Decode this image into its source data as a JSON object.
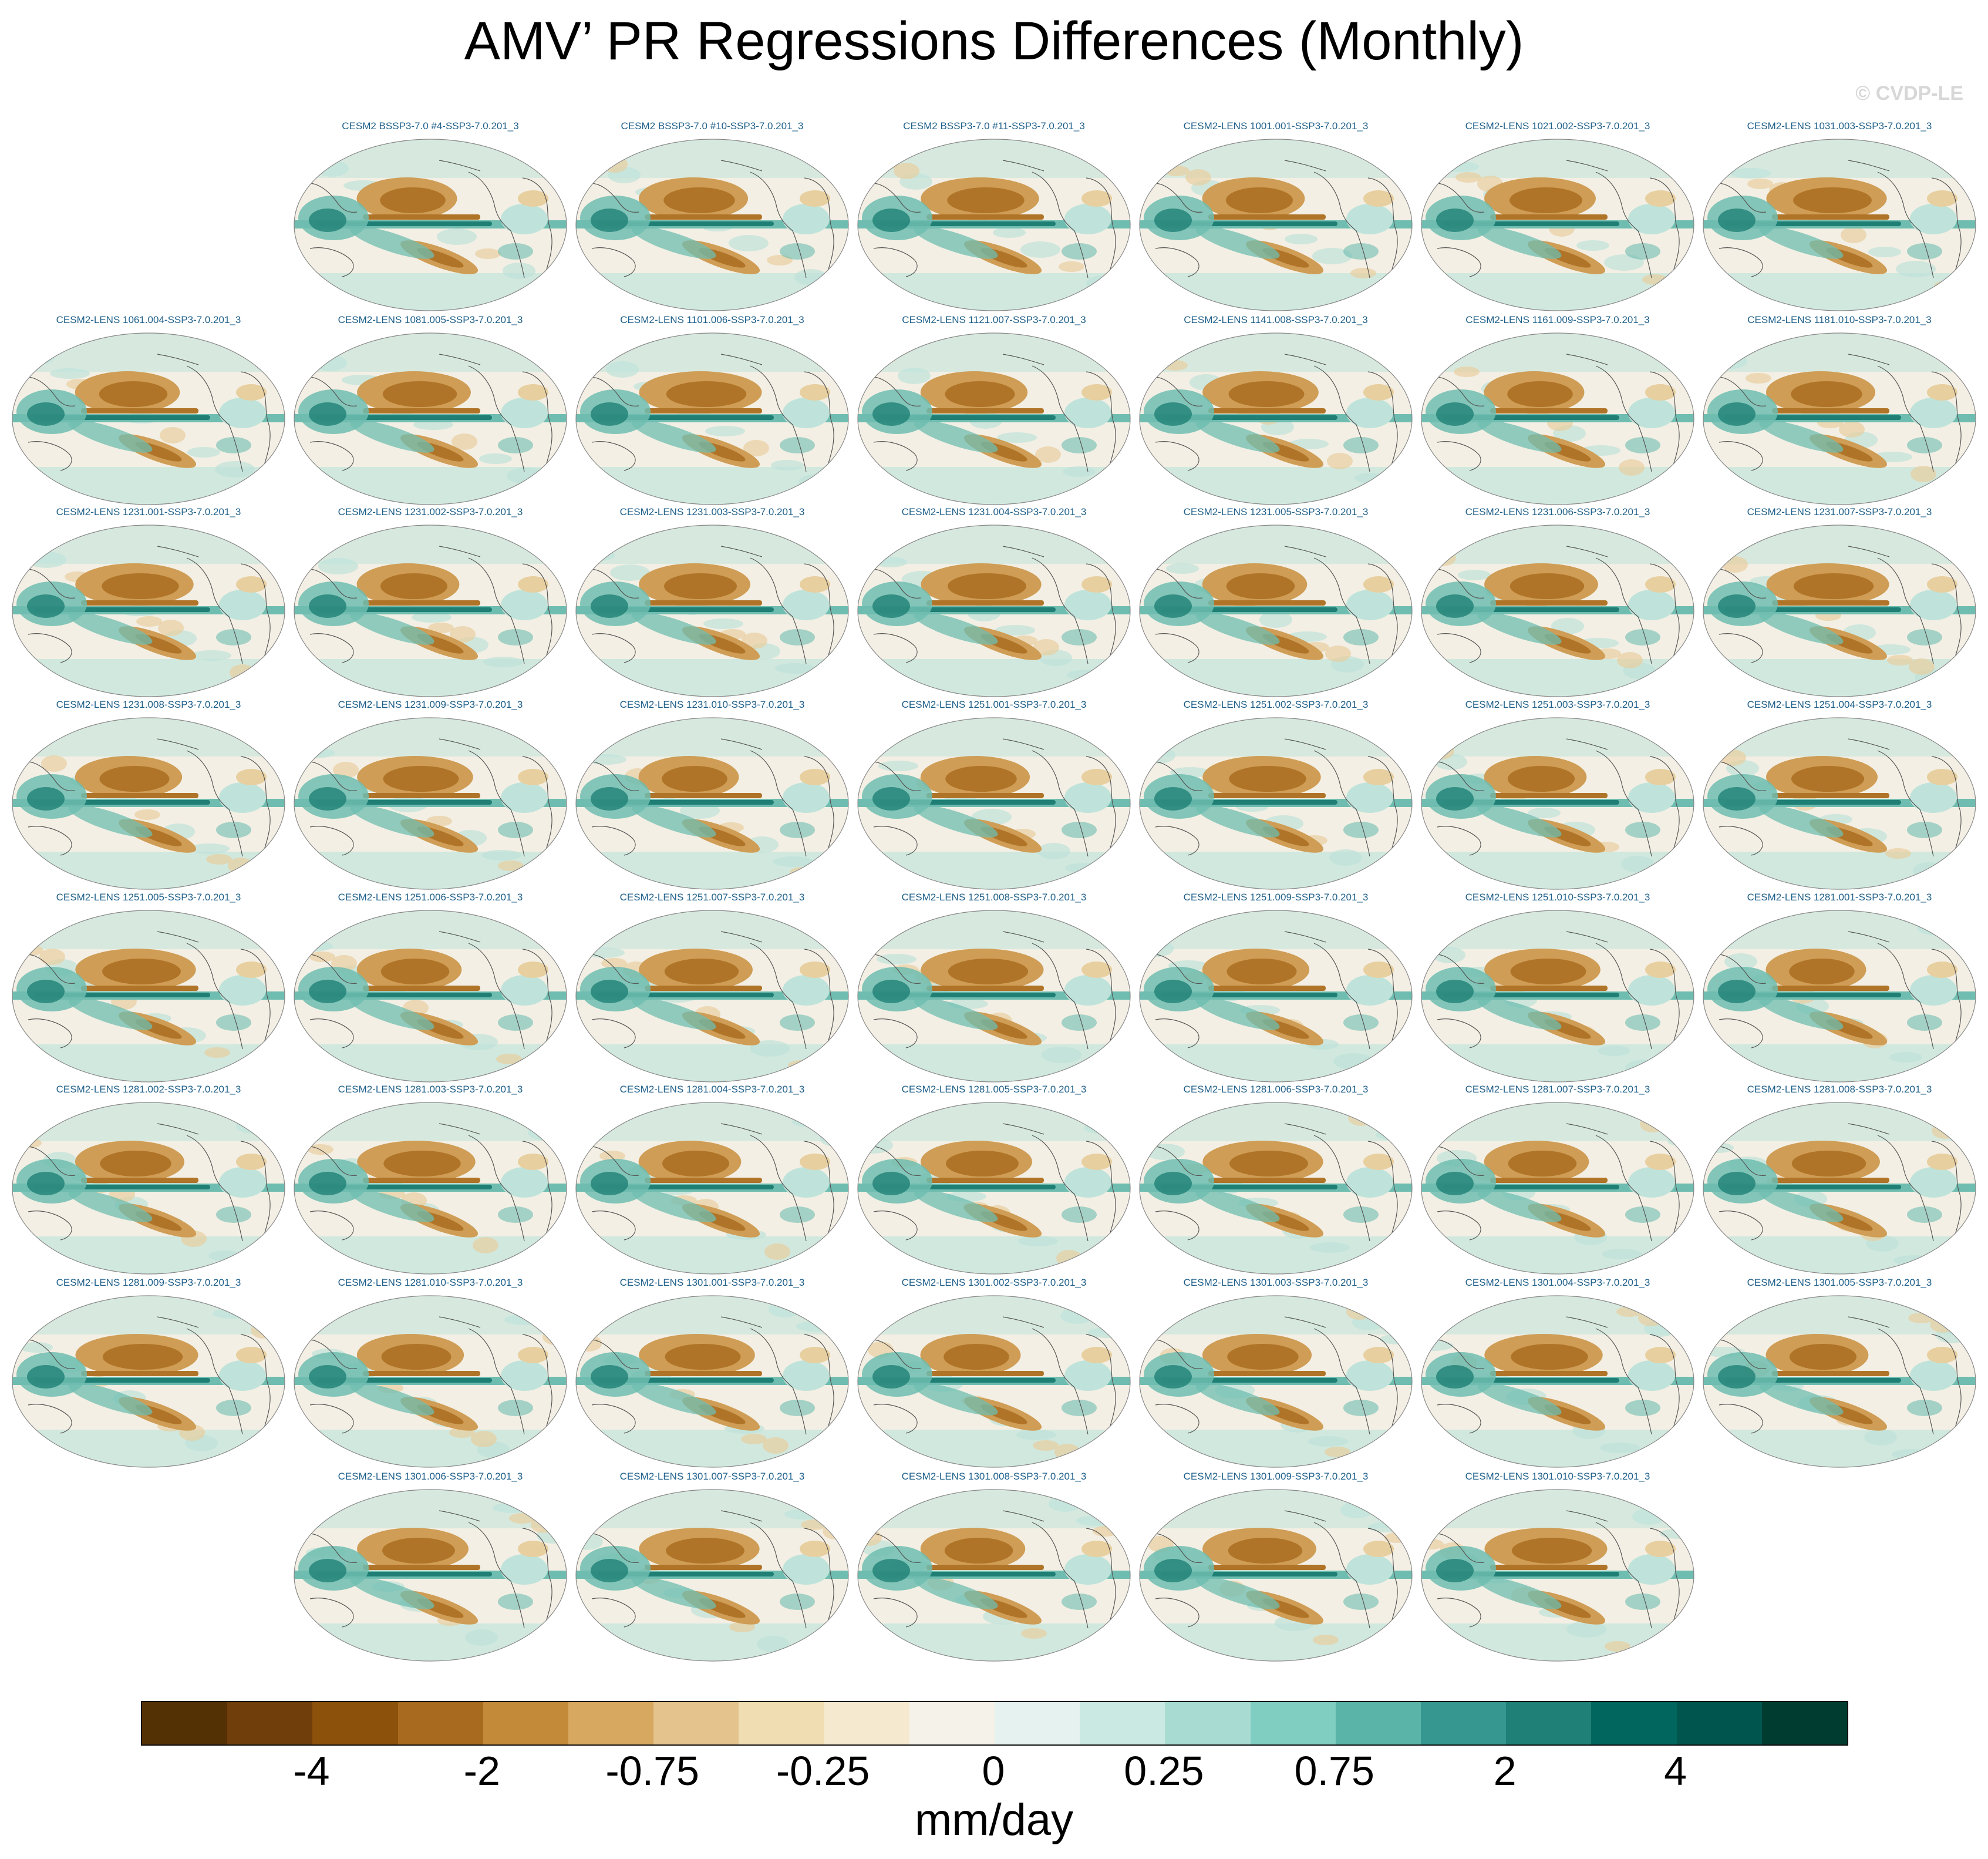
{
  "chart_data": {
    "type": "heatmap",
    "title": "AMV’ PR Regressions Differences (Monthly)",
    "watermark": "© CVDP-LE",
    "units": "mm/day",
    "projection": "global map panels",
    "panels": [
      "CESM2 BSSP3-7.0 #4-SSP3-7.0.201_3",
      "CESM2 BSSP3-7.0 #10-SSP3-7.0.201_3",
      "CESM2 BSSP3-7.0 #11-SSP3-7.0.201_3",
      "CESM2-LENS 1001.001-SSP3-7.0.201_3",
      "CESM2-LENS 1021.002-SSP3-7.0.201_3",
      "CESM2-LENS 1031.003-SSP3-7.0.201_3",
      "CESM2-LENS 1061.004-SSP3-7.0.201_3",
      "CESM2-LENS 1081.005-SSP3-7.0.201_3",
      "CESM2-LENS 1101.006-SSP3-7.0.201_3",
      "CESM2-LENS 1121.007-SSP3-7.0.201_3",
      "CESM2-LENS 1141.008-SSP3-7.0.201_3",
      "CESM2-LENS 1161.009-SSP3-7.0.201_3",
      "CESM2-LENS 1181.010-SSP3-7.0.201_3",
      "CESM2-LENS 1231.001-SSP3-7.0.201_3",
      "CESM2-LENS 1231.002-SSP3-7.0.201_3",
      "CESM2-LENS 1231.003-SSP3-7.0.201_3",
      "CESM2-LENS 1231.004-SSP3-7.0.201_3",
      "CESM2-LENS 1231.005-SSP3-7.0.201_3",
      "CESM2-LENS 1231.006-SSP3-7.0.201_3",
      "CESM2-LENS 1231.007-SSP3-7.0.201_3",
      "CESM2-LENS 1231.008-SSP3-7.0.201_3",
      "CESM2-LENS 1231.009-SSP3-7.0.201_3",
      "CESM2-LENS 1231.010-SSP3-7.0.201_3",
      "CESM2-LENS 1251.001-SSP3-7.0.201_3",
      "CESM2-LENS 1251.002-SSP3-7.0.201_3",
      "CESM2-LENS 1251.003-SSP3-7.0.201_3",
      "CESM2-LENS 1251.004-SSP3-7.0.201_3",
      "CESM2-LENS 1251.005-SSP3-7.0.201_3",
      "CESM2-LENS 1251.006-SSP3-7.0.201_3",
      "CESM2-LENS 1251.007-SSP3-7.0.201_3",
      "CESM2-LENS 1251.008-SSP3-7.0.201_3",
      "CESM2-LENS 1251.009-SSP3-7.0.201_3",
      "CESM2-LENS 1251.010-SSP3-7.0.201_3",
      "CESM2-LENS 1281.001-SSP3-7.0.201_3",
      "CESM2-LENS 1281.002-SSP3-7.0.201_3",
      "CESM2-LENS 1281.003-SSP3-7.0.201_3",
      "CESM2-LENS 1281.004-SSP3-7.0.201_3",
      "CESM2-LENS 1281.005-SSP3-7.0.201_3",
      "CESM2-LENS 1281.006-SSP3-7.0.201_3",
      "CESM2-LENS 1281.007-SSP3-7.0.201_3",
      "CESM2-LENS 1281.008-SSP3-7.0.201_3",
      "CESM2-LENS 1281.009-SSP3-7.0.201_3",
      "CESM2-LENS 1281.010-SSP3-7.0.201_3",
      "CESM2-LENS 1301.001-SSP3-7.0.201_3",
      "CESM2-LENS 1301.002-SSP3-7.0.201_3",
      "CESM2-LENS 1301.003-SSP3-7.0.201_3",
      "CESM2-LENS 1301.004-SSP3-7.0.201_3",
      "CESM2-LENS 1301.005-SSP3-7.0.201_3",
      "CESM2-LENS 1301.006-SSP3-7.0.201_3",
      "CESM2-LENS 1301.007-SSP3-7.0.201_3",
      "CESM2-LENS 1301.008-SSP3-7.0.201_3",
      "CESM2-LENS 1301.009-SSP3-7.0.201_3",
      "CESM2-LENS 1301.010-SSP3-7.0.201_3"
    ],
    "colorbar": {
      "labels": [
        "-4",
        "-2",
        "-0.75",
        "-0.25",
        "0",
        "0.25",
        "0.75",
        "2",
        "4"
      ],
      "colors": [
        "#543005",
        "#6f3e0a",
        "#8c510a",
        "#a86a1f",
        "#c38a3a",
        "#d7a85f",
        "#e4c48c",
        "#f0ddb1",
        "#f5ead0",
        "#f5f2ea",
        "#e6f2ef",
        "#cbe9e3",
        "#a8dcd2",
        "#80cdc1",
        "#5ab4a7",
        "#35978f",
        "#1f8077",
        "#01665e",
        "#00564e",
        "#003c30"
      ]
    },
    "map_colors": {
      "ocean_neutral": "#f3efe4",
      "land_neutral": "#f7f4ec",
      "dry_strong": "#b07428",
      "dry_mid": "#cf9d55",
      "dry_light": "#e8cf9f",
      "wet_light": "#bfe3da",
      "wet_mid": "#6fbdb0",
      "wet_strong": "#1f7f75",
      "coast": "#555555"
    }
  }
}
